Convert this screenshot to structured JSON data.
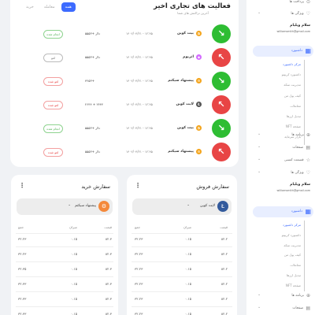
{
  "activity": {
    "title": "فعالیت های تجاری اخیر",
    "subtitle": "آخرین تراکنش های شما",
    "tabs": [
      "همه",
      "معامله",
      "خرید"
    ],
    "rows": [
      {
        "type": "buy",
        "coin": "بیت کوین",
        "coin_color": "#f4a41b",
        "coin_sym": "₿",
        "date": "۱۴۰۲/۰۴/۲۱ - ۱۲:۴۵",
        "amount": "۵۵۵۳+ دلار",
        "status": "انجام شده",
        "status_kind": "ok"
      },
      {
        "type": "sell",
        "coin": "اتریوم",
        "coin_color": "#d46cff",
        "coin_sym": "◆",
        "date": "۱۴۰۲/۰۴/۲۱ - ۱۲:۴۵",
        "amount": "۵۵۵۳+ دلار",
        "status": "لغو",
        "status_kind": "mid"
      },
      {
        "type": "buy",
        "coin": "پیشنهاد سیکتم",
        "coin_color": "#f4a41b",
        "coin_sym": "⚙",
        "date": "۱۴۰۲/۰۴/۲۱ - ۱۲:۴۵",
        "amount": "۴۲۵۳+",
        "status": "لغو شده",
        "status_kind": "no"
      },
      {
        "type": "sell",
        "coin": "لایت کوین",
        "coin_color": "#555555",
        "coin_sym": "Ł",
        "date": "۱۴۰۲/۰۴/۲۱ - ۱۲:۴۵",
        "amount": "۲۶۴۴ + ۲۴۴۴",
        "status": "لغو شده",
        "status_kind": "no"
      },
      {
        "type": "buy",
        "coin": "بیت کوین",
        "coin_color": "#f4a41b",
        "coin_sym": "₿",
        "date": "۱۴۰۲/۰۴/۲۱ - ۱۲:۴۵",
        "amount": "۵۵۵۳+ دلار",
        "status": "انجام شده",
        "status_kind": "ok"
      },
      {
        "type": "sell",
        "coin": "پیشنهاد سیکتم",
        "coin_color": "#f4a41b",
        "coin_sym": "⚙",
        "date": "۱۴۰۲/۰۴/۲۱ - ۱۲:۴۵",
        "amount": "۵۵۵۳+ دلار",
        "status": "لغو شده",
        "status_kind": "no"
      }
    ]
  },
  "sell_orders": {
    "title": "سفارش فروش",
    "selected": "لایت کوین",
    "selected_color": "#335a9c",
    "selected_sym": "Ł",
    "columns": [
      "قیمت",
      "میزان",
      "جمع"
    ],
    "rows": [
      [
        "۸۲.۲",
        "۰.۱۵",
        "۳۲.۲۳"
      ],
      [
        "۸۲.۲",
        "۰.۱۵",
        "۳۲.۲۳"
      ],
      [
        "۸۲.۲",
        "۰.۱۵",
        "۳۲.۲۳"
      ],
      [
        "۸۲.۲",
        "۰.۱۵",
        "۳۲.۲۳"
      ],
      [
        "۸۲.۲",
        "۰.۱۵",
        "۳۲.۲۳"
      ],
      [
        "۸۲.۲",
        "۰.۱۵",
        "۳۲.۲۳"
      ]
    ]
  },
  "buy_orders": {
    "title": "سفارش خرید",
    "selected": "پیشنهاد سیکتم",
    "selected_color": "#f4893b",
    "selected_sym": "⚙",
    "columns": [
      "قیمت",
      "میزان",
      "جمع"
    ],
    "rows": [
      [
        "۸۲.۳",
        "۰.۱۵",
        "۳۲.۲۳"
      ],
      [
        "۸۲.۳",
        "۰.۱۵",
        "۳۲.۲۳"
      ],
      [
        "۸۲.۳",
        "۰.۱۵",
        "۳۲.۳۵"
      ],
      [
        "۸۲.۳",
        "۰.۱۵",
        "۳۲.۳۳"
      ],
      [
        "۸۲.۳",
        "۰.۱۵",
        "۳۲.۳۳"
      ],
      [
        "۸۲.۳",
        "۰.۱۵",
        "۳۲.۳۳"
      ]
    ]
  },
  "sidebar": {
    "top_items": [
      {
        "label": "پرداخت ها",
        "icon": "coin-icon"
      },
      {
        "label": "ویژگی ها",
        "icon": "star-icon"
      }
    ],
    "user_name": "سلام ویلیام",
    "user_email": "williamsmith@gmail.com",
    "dashboard": "داشبورد",
    "submenu": [
      "مرکز داشبورد",
      "داشبورد کریپتو",
      "مدیریت سکه",
      "کیف پول من",
      "معاملات",
      "تبدیل ارزها",
      "صفحه NFT",
      "بازار سرمایه"
    ],
    "section2_items": [
      {
        "label": "برنامه ها",
        "icon": "apps-icon"
      },
      {
        "label": "صفحات",
        "icon": "pages-icon"
      },
      {
        "label": "قسمت کسبی",
        "icon": "star-icon"
      },
      {
        "label": "ویژگی ها",
        "icon": "heart-icon"
      }
    ],
    "section3_items": [
      {
        "label": "برنامه ها",
        "icon": "apps-icon"
      },
      {
        "label": "صفحات",
        "icon": "pages-icon"
      }
    ]
  }
}
